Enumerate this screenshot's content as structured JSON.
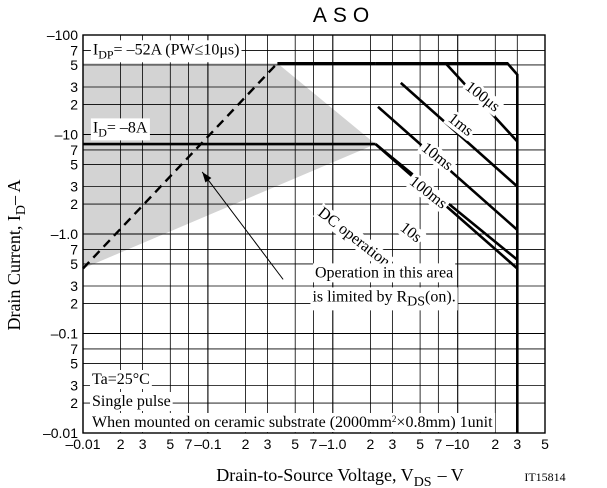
{
  "chart_data": {
    "type": "line",
    "title": "ASO",
    "figure_id": "IT15814",
    "xlabel": {
      "main": "Drain-to-Source Voltage, V",
      "sub": "DS",
      "unit": "–  V"
    },
    "ylabel": {
      "main": "Drain Current, I",
      "sub": "D",
      "unit": "–  A"
    },
    "xscale": "log",
    "yscale": "log",
    "xlim": [
      0.01,
      50
    ],
    "ylim": [
      0.01,
      100
    ],
    "grid": true,
    "x_tick_labels": [
      {
        "v": 0.01,
        "t": "–0.01"
      },
      {
        "v": 0.02,
        "t": "2"
      },
      {
        "v": 0.03,
        "t": "3"
      },
      {
        "v": 0.05,
        "t": "5"
      },
      {
        "v": 0.07,
        "t": "7"
      },
      {
        "v": 0.1,
        "t": "–0.1"
      },
      {
        "v": 0.2,
        "t": "2"
      },
      {
        "v": 0.3,
        "t": "3"
      },
      {
        "v": 0.5,
        "t": "5"
      },
      {
        "v": 0.7,
        "t": "7"
      },
      {
        "v": 1.0,
        "t": "–1.0"
      },
      {
        "v": 2,
        "t": "2"
      },
      {
        "v": 3,
        "t": "3"
      },
      {
        "v": 5,
        "t": "5"
      },
      {
        "v": 7,
        "t": "7"
      },
      {
        "v": 10,
        "t": "–10"
      },
      {
        "v": 20,
        "t": "2"
      },
      {
        "v": 30,
        "t": "3"
      },
      {
        "v": 50,
        "t": "5"
      }
    ],
    "y_tick_labels": [
      {
        "v": 100,
        "t": "–100"
      },
      {
        "v": 70,
        "t": "7"
      },
      {
        "v": 50,
        "t": "5"
      },
      {
        "v": 30,
        "t": "3"
      },
      {
        "v": 20,
        "t": "2"
      },
      {
        "v": 10,
        "t": "–10"
      },
      {
        "v": 7,
        "t": "7"
      },
      {
        "v": 5,
        "t": "5"
      },
      {
        "v": 3,
        "t": "3"
      },
      {
        "v": 2,
        "t": "2"
      },
      {
        "v": 1.0,
        "t": "–1.0"
      },
      {
        "v": 0.7,
        "t": "7"
      },
      {
        "v": 0.5,
        "t": "5"
      },
      {
        "v": 0.3,
        "t": "3"
      },
      {
        "v": 0.2,
        "t": "2"
      },
      {
        "v": 0.1,
        "t": "–0.1"
      },
      {
        "v": 0.07,
        "t": "7"
      },
      {
        "v": 0.05,
        "t": "5"
      },
      {
        "v": 0.03,
        "t": "3"
      },
      {
        "v": 0.02,
        "t": "2"
      },
      {
        "v": 0.01,
        "t": "–0.01"
      }
    ],
    "shaded_region": [
      [
        0.01,
        0.45
      ],
      [
        0.01,
        52
      ],
      [
        0.36,
        52
      ],
      [
        2.2,
        8
      ]
    ],
    "rds_limit_line": [
      [
        0.01,
        0.45
      ],
      [
        0.36,
        52
      ]
    ],
    "series": [
      {
        "name": "",
        "points": [
          [
            0.36,
            52
          ],
          [
            2.2,
            52
          ]
        ]
      },
      {
        "name": "100μs",
        "points": [
          [
            2.2,
            52
          ],
          [
            25,
            52
          ],
          [
            30,
            40
          ],
          [
            30,
            0.01
          ]
        ]
      },
      {
        "name": "1ms",
        "points": [
          [
            8,
            52
          ],
          [
            30,
            8.5
          ]
        ]
      },
      {
        "name": "10ms",
        "points": [
          [
            3.5,
            33
          ],
          [
            30,
            3
          ]
        ]
      },
      {
        "name": "100ms",
        "points": [
          [
            2.3,
            19
          ],
          [
            30,
            1.1
          ]
        ]
      },
      {
        "name": "",
        "points": [
          [
            0.01,
            8
          ],
          [
            2.2,
            8
          ]
        ]
      },
      {
        "name": "10s",
        "points": [
          [
            2.2,
            8
          ],
          [
            30,
            0.55
          ]
        ]
      },
      {
        "name": "DC operation",
        "points": [
          [
            2.2,
            8
          ],
          [
            30,
            0.45
          ]
        ]
      }
    ],
    "annotations": [
      {
        "id": "idp",
        "main": "I",
        "sub": "DP",
        "rest": "= –52A (PW≤10μs)",
        "x": 0.012,
        "y": 64
      },
      {
        "id": "id",
        "main": "I",
        "sub": "D",
        "rest": "= –8A",
        "x": 0.012,
        "y": 10.5
      },
      {
        "id": "c100us",
        "text": "100μs",
        "x": 15,
        "y": 22,
        "rot": 38
      },
      {
        "id": "c1ms",
        "text": "1ms",
        "x": 10,
        "y": 11.5,
        "rot": 38
      },
      {
        "id": "c10ms",
        "text": "10ms",
        "x": 6.5,
        "y": 5.5,
        "rot": 38
      },
      {
        "id": "c100ms",
        "text": "100ms",
        "x": 5.5,
        "y": 2.4,
        "rot": 38
      },
      {
        "id": "c10s",
        "text": "10s",
        "x": 4.0,
        "y": 0.95,
        "rot": 38
      },
      {
        "id": "cdc",
        "text": "DC operation",
        "x": 1.4,
        "y": 0.85,
        "rot": 38
      }
    ],
    "callout": {
      "lines": [
        "Operation in this area",
        "is limited by R"
      ],
      "sub": "DS",
      "tail": "(on).",
      "arrow_from": [
        0.4,
        0.35
      ],
      "arrow_to": [
        0.09,
        4.2
      ]
    },
    "conditions": {
      "line1": "Ta=25°C",
      "line2": "Single pulse",
      "line3_a": "When mounted on ceramic substrate (2000mm",
      "line3_sup": "2",
      "line3_b": "×0.8mm) 1unit"
    }
  }
}
